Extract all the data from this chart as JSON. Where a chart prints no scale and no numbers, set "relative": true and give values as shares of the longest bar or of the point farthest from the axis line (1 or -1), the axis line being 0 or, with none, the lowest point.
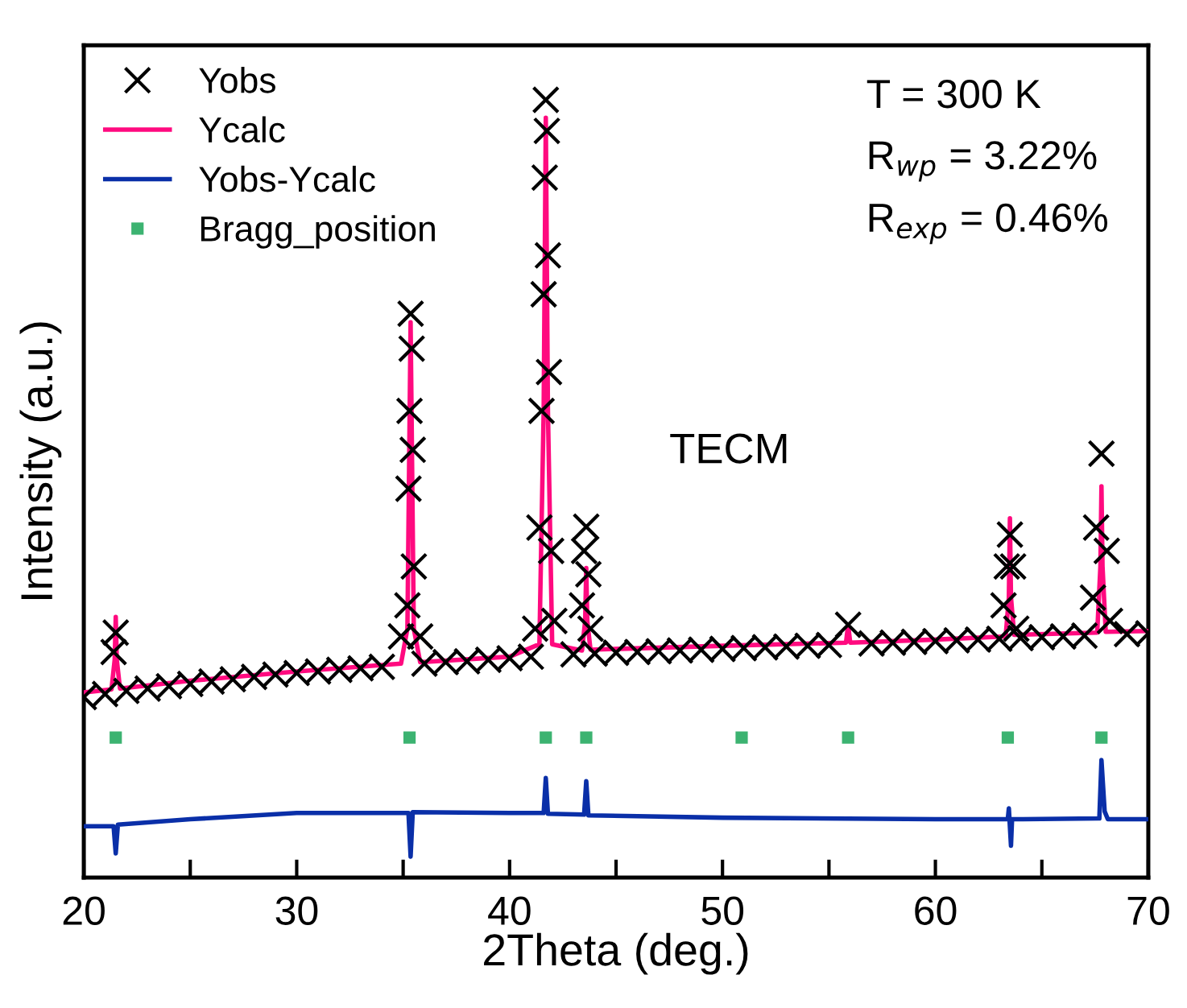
{
  "chart_data": {
    "type": "line",
    "relative": true,
    "xlabel": "2Theta (deg.)",
    "ylabel": "Intensity (a.u.)",
    "tick_labels": "x",
    "legend": "top left",
    "grid": false,
    "xlim": [
      20,
      70
    ],
    "xticks": [
      20,
      {
        "value": 25,
        "label": null
      },
      30,
      {
        "value": 35,
        "label": null
      },
      40,
      {
        "value": 45,
        "label": null
      },
      50,
      {
        "value": 55,
        "label": null
      },
      60,
      {
        "value": 65,
        "label": null
      },
      70
    ],
    "annotations": [
      "T = 300 K",
      "R$_{wp}$ = 3.22%",
      "R$_{exp}$ = 0.46%",
      "TECM"
    ],
    "series": [
      {
        "name": "Yobs",
        "type": "scatter",
        "marker": "cross",
        "color": "#000000",
        "x": [
          20,
          21,
          21.4,
          21.5,
          22,
          23,
          24,
          25,
          26,
          27,
          28,
          29,
          30,
          31,
          32,
          33,
          34,
          34.9,
          35.2,
          35.25,
          35.3,
          35.35,
          35.4,
          35.45,
          35.5,
          35.8,
          36,
          37,
          38,
          39,
          40,
          41,
          41.2,
          41.4,
          41.5,
          41.6,
          41.65,
          41.7,
          41.75,
          41.8,
          41.85,
          41.95,
          42.1,
          43,
          43.4,
          43.5,
          43.6,
          43.7,
          43.8,
          44,
          45,
          46,
          47,
          48,
          49,
          50,
          51,
          52,
          53,
          54,
          55,
          55.9,
          57,
          58,
          59,
          60,
          61,
          62,
          63,
          63.2,
          63.35,
          63.5,
          63.65,
          63.8,
          64,
          65,
          66,
          67,
          67.4,
          67.55,
          67.8,
          68.05,
          68.2,
          69,
          70
        ],
        "values": [
          0.232,
          0.236,
          0.29,
          0.315,
          0.24,
          0.243,
          0.246,
          0.249,
          0.252,
          0.255,
          0.258,
          0.261,
          0.263,
          0.265,
          0.267,
          0.269,
          0.271,
          0.31,
          0.35,
          0.5,
          0.6,
          0.725,
          0.68,
          0.55,
          0.4,
          0.31,
          0.275,
          0.277,
          0.278,
          0.28,
          0.282,
          0.284,
          0.32,
          0.45,
          0.6,
          0.75,
          0.9,
          1.0,
          0.96,
          0.8,
          0.65,
          0.42,
          0.33,
          0.287,
          0.35,
          0.42,
          0.451,
          0.39,
          0.32,
          0.288,
          0.289,
          0.29,
          0.291,
          0.292,
          0.293,
          0.294,
          0.295,
          0.296,
          0.297,
          0.298,
          0.299,
          0.325,
          0.301,
          0.302,
          0.303,
          0.304,
          0.305,
          0.306,
          0.307,
          0.35,
          0.4,
          0.441,
          0.4,
          0.32,
          0.308,
          0.309,
          0.31,
          0.311,
          0.36,
          0.45,
          0.545,
          0.42,
          0.33,
          0.313,
          0.314
        ]
      },
      {
        "name": "Ycalc",
        "color": "#ff0a7f",
        "x": [
          20,
          21.3,
          21.45,
          21.5,
          21.55,
          21.7,
          25,
          30,
          34.9,
          35.2,
          35.35,
          35.5,
          35.8,
          40,
          41.4,
          41.6,
          41.7,
          41.8,
          42.0,
          43.4,
          43.55,
          43.6,
          43.65,
          43.8,
          50,
          55.8,
          55.9,
          56.0,
          60,
          63.3,
          63.45,
          63.5,
          63.55,
          63.7,
          67.6,
          67.75,
          67.8,
          67.85,
          68.0,
          70
        ],
        "values": [
          0.238,
          0.242,
          0.28,
          0.335,
          0.28,
          0.243,
          0.253,
          0.265,
          0.275,
          0.32,
          0.714,
          0.32,
          0.277,
          0.284,
          0.3,
          0.6,
          0.977,
          0.6,
          0.3,
          0.292,
          0.33,
          0.398,
          0.33,
          0.293,
          0.298,
          0.302,
          0.325,
          0.302,
          0.306,
          0.31,
          0.36,
          0.462,
          0.36,
          0.312,
          0.315,
          0.4,
          0.503,
          0.4,
          0.316,
          0.317
        ]
      },
      {
        "name": "Yobs-Ycalc",
        "color": "#0a2fa8",
        "x": [
          20,
          21.4,
          21.5,
          21.6,
          25,
          30,
          35.25,
          35.35,
          35.45,
          40,
          41.6,
          41.7,
          41.8,
          43.5,
          43.6,
          43.7,
          50,
          60,
          63.4,
          63.45,
          63.55,
          63.6,
          67.7,
          67.8,
          67.95,
          68.1,
          70
        ],
        "values": [
          0.066,
          0.066,
          0.031,
          0.068,
          0.075,
          0.083,
          0.083,
          0.027,
          0.084,
          0.083,
          0.083,
          0.128,
          0.082,
          0.081,
          0.124,
          0.08,
          0.077,
          0.075,
          0.075,
          0.089,
          0.041,
          0.075,
          0.076,
          0.151,
          0.085,
          0.075,
          0.075
        ]
      },
      {
        "name": "Bragg_position",
        "type": "scatter",
        "marker": "square",
        "color": "#3cb371",
        "x": [
          21.5,
          35.3,
          41.7,
          43.6,
          50.9,
          55.9,
          63.4,
          67.8
        ],
        "values": [
          0.18,
          0.18,
          0.18,
          0.18,
          0.18,
          0.18,
          0.18,
          0.18
        ]
      }
    ]
  }
}
